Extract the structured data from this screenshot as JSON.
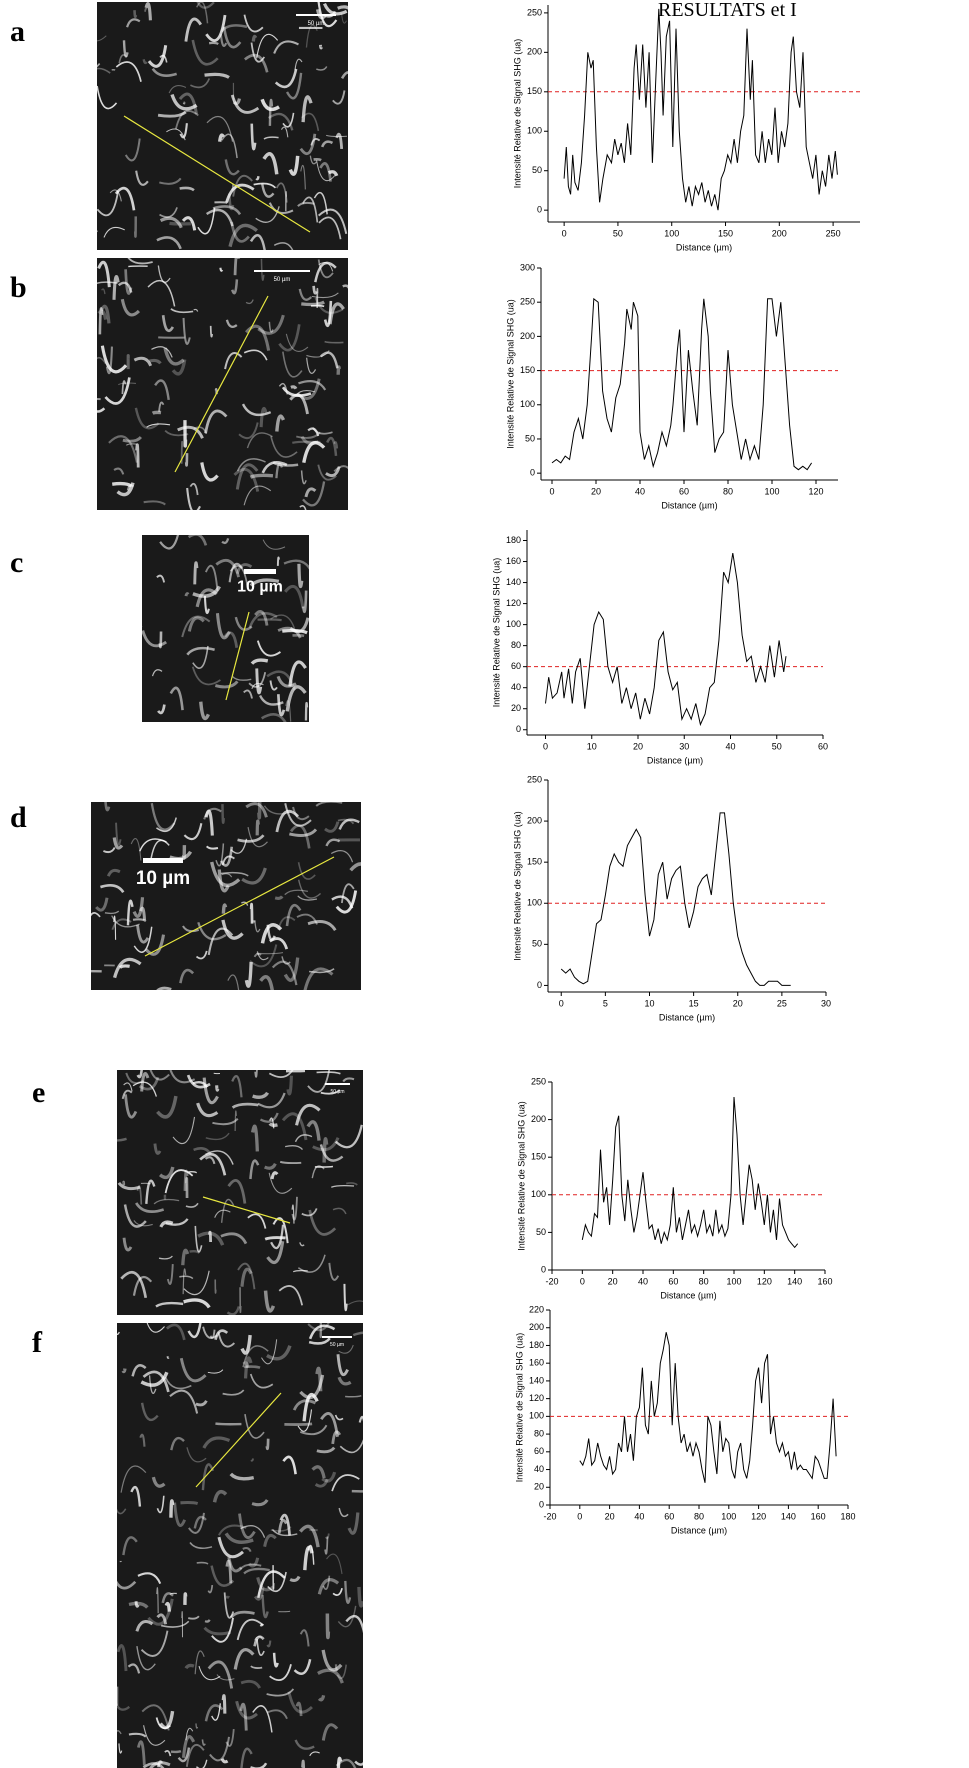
{
  "header": "RESULTATS et I",
  "chart_data": [
    {
      "type": "line",
      "panel": "a",
      "scale_bar": "50 µm",
      "x_label": "Distance (µm)",
      "y_label": "Intensité Relative de Signal SHG (ua)",
      "xlim": [
        -15,
        275
      ],
      "xticks": [
        0,
        50,
        100,
        150,
        200,
        250
      ],
      "ylim": [
        -15,
        260
      ],
      "yticks": [
        0,
        50,
        100,
        150,
        200,
        250
      ],
      "threshold": 150,
      "threshold_color": "#e02020",
      "x": [
        0,
        2,
        4,
        6,
        8,
        10,
        13,
        16,
        19,
        22,
        25,
        27,
        30,
        33,
        36,
        40,
        44,
        47,
        50,
        53,
        56,
        59,
        62,
        65,
        67,
        70,
        73,
        76,
        79,
        82,
        85,
        88,
        90,
        92,
        95,
        98,
        101,
        104,
        107,
        110,
        113,
        116,
        119,
        122,
        125,
        128,
        131,
        134,
        137,
        140,
        143,
        146,
        149,
        152,
        155,
        158,
        161,
        164,
        167,
        170,
        173,
        175,
        178,
        181,
        184,
        187,
        190,
        193,
        196,
        199,
        202,
        205,
        208,
        211,
        213,
        216,
        219,
        222,
        225,
        228,
        231,
        234,
        237,
        240,
        243,
        246,
        249,
        252,
        254
      ],
      "series": [
        {
          "color": "#000000",
          "values": [
            40,
            80,
            30,
            20,
            70,
            35,
            25,
            60,
            120,
            200,
            180,
            190,
            80,
            10,
            40,
            70,
            60,
            90,
            70,
            85,
            60,
            110,
            70,
            180,
            210,
            140,
            210,
            130,
            200,
            60,
            160,
            255,
            200,
            120,
            220,
            240,
            80,
            230,
            100,
            40,
            10,
            30,
            5,
            30,
            20,
            35,
            10,
            25,
            5,
            20,
            0,
            40,
            50,
            70,
            60,
            90,
            60,
            100,
            120,
            230,
            140,
            190,
            70,
            60,
            100,
            60,
            90,
            70,
            130,
            60,
            100,
            80,
            110,
            200,
            220,
            150,
            130,
            200,
            80,
            60,
            40,
            70,
            20,
            50,
            30,
            70,
            40,
            75,
            45
          ]
        }
      ]
    },
    {
      "type": "line",
      "panel": "b",
      "scale_bar": "50 µm",
      "x_label": "Distance (µm)",
      "y_label": "Intensité Relative de Signal SHG (ua)",
      "xlim": [
        -5,
        130
      ],
      "xticks": [
        0,
        20,
        40,
        60,
        80,
        100,
        120
      ],
      "ylim": [
        -10,
        300
      ],
      "yticks": [
        0,
        50,
        100,
        150,
        200,
        250,
        300
      ],
      "threshold": 150,
      "threshold_color": "#e02020",
      "x": [
        0,
        2,
        4,
        6,
        8,
        10,
        12,
        14,
        16,
        18,
        19,
        21,
        23,
        25,
        27,
        29,
        31,
        33,
        34,
        36,
        37,
        39,
        40,
        42,
        44,
        46,
        48,
        50,
        52,
        54,
        55,
        57,
        58,
        60,
        62,
        64,
        66,
        68,
        69,
        71,
        72,
        74,
        76,
        78,
        80,
        82,
        84,
        86,
        88,
        90,
        92,
        94,
        96,
        98,
        100,
        102,
        104,
        106,
        108,
        110,
        112,
        114,
        116,
        118
      ],
      "series": [
        {
          "color": "#000000",
          "values": [
            15,
            20,
            15,
            25,
            20,
            60,
            80,
            50,
            100,
            200,
            255,
            250,
            120,
            80,
            60,
            110,
            130,
            190,
            240,
            210,
            250,
            230,
            60,
            20,
            40,
            10,
            30,
            60,
            40,
            70,
            100,
            180,
            210,
            60,
            180,
            120,
            70,
            210,
            255,
            200,
            120,
            30,
            50,
            60,
            180,
            100,
            60,
            20,
            50,
            20,
            40,
            20,
            100,
            255,
            255,
            200,
            250,
            160,
            70,
            10,
            5,
            10,
            5,
            15
          ]
        }
      ]
    },
    {
      "type": "line",
      "panel": "c",
      "scale_bar": "10 µm",
      "x_label": "Distance (µm)",
      "y_label": "Intensité Relative de Signal SHG (ua)",
      "xlim": [
        -4,
        60
      ],
      "xticks": [
        0,
        10,
        20,
        30,
        40,
        50,
        60
      ],
      "ylim": [
        -5,
        190
      ],
      "yticks": [
        0,
        20,
        40,
        60,
        80,
        100,
        120,
        140,
        160,
        180
      ],
      "threshold": 60,
      "threshold_color": "#e02020",
      "x": [
        0,
        0.7,
        1.5,
        2.5,
        3.5,
        4,
        5,
        5.8,
        6.5,
        7.5,
        8.5,
        9.5,
        10.5,
        11.5,
        12.5,
        13.5,
        14.5,
        15.5,
        16.5,
        17.5,
        18.5,
        19.5,
        20.5,
        21.5,
        22.5,
        23.5,
        24.5,
        25.5,
        26.5,
        27.5,
        28.5,
        29.5,
        30.5,
        31.5,
        32.5,
        33.5,
        34.5,
        35.5,
        36.5,
        37.5,
        38.5,
        39.5,
        40.5,
        41.5,
        42.5,
        43.5,
        44.5,
        45.5,
        46.5,
        47.5,
        48.5,
        49.5,
        50.5,
        51.5,
        52
      ],
      "series": [
        {
          "color": "#000000",
          "values": [
            25,
            50,
            30,
            35,
            55,
            30,
            58,
            25,
            55,
            68,
            20,
            60,
            100,
            112,
            105,
            60,
            45,
            60,
            25,
            40,
            20,
            35,
            10,
            30,
            15,
            40,
            85,
            93,
            55,
            38,
            45,
            10,
            20,
            10,
            25,
            5,
            15,
            40,
            45,
            85,
            150,
            140,
            168,
            140,
            90,
            65,
            70,
            45,
            60,
            45,
            80,
            50,
            85,
            55,
            70
          ]
        }
      ]
    },
    {
      "type": "line",
      "panel": "d",
      "scale_bar": "10 µm",
      "x_label": "Distance (µm)",
      "y_label": "Intensité Relative de Signal SHG (ua)",
      "xlim": [
        -1.5,
        30
      ],
      "xticks": [
        0,
        5,
        10,
        15,
        20,
        25,
        30
      ],
      "ylim": [
        -8,
        250
      ],
      "yticks": [
        0,
        50,
        100,
        150,
        200,
        250
      ],
      "threshold": 100,
      "threshold_color": "#e02020",
      "x": [
        0,
        0.5,
        1,
        1.5,
        2,
        2.5,
        3,
        3.5,
        4,
        4.5,
        5,
        5.5,
        6,
        6.5,
        7,
        7.5,
        8,
        8.5,
        9,
        9.5,
        10,
        10.5,
        11,
        11.5,
        12,
        12.5,
        13,
        13.5,
        14,
        14.5,
        15,
        15.5,
        16,
        16.5,
        17,
        17.5,
        18,
        18.5,
        19,
        19.5,
        20,
        20.5,
        21,
        21.5,
        22,
        22.5,
        23,
        23.5,
        24,
        24.5,
        25,
        26
      ],
      "series": [
        {
          "color": "#000000",
          "values": [
            20,
            15,
            20,
            10,
            5,
            2,
            5,
            40,
            75,
            80,
            110,
            145,
            160,
            150,
            145,
            170,
            180,
            190,
            180,
            110,
            60,
            80,
            135,
            150,
            105,
            130,
            140,
            145,
            100,
            70,
            90,
            120,
            130,
            135,
            110,
            160,
            210,
            210,
            160,
            100,
            60,
            40,
            25,
            15,
            5,
            0,
            0,
            5,
            5,
            5,
            0,
            0
          ]
        }
      ]
    },
    {
      "type": "line",
      "panel": "e",
      "scale_bar": "50 µm",
      "x_label": "Distance (µm)",
      "y_label": "Intensité Relative de Signal SHG (ua)",
      "xlim": [
        -20,
        160
      ],
      "xticks": [
        -20,
        0,
        20,
        40,
        60,
        80,
        100,
        120,
        140,
        160
      ],
      "ylim": [
        0,
        250
      ],
      "yticks": [
        0,
        50,
        100,
        150,
        200,
        250
      ],
      "threshold": 100,
      "threshold_color": "#e02020",
      "x": [
        0,
        2,
        4,
        6,
        8,
        10,
        12,
        14,
        16,
        18,
        20,
        22,
        24,
        26,
        28,
        30,
        32,
        34,
        36,
        38,
        40,
        42,
        44,
        46,
        48,
        50,
        52,
        54,
        56,
        58,
        60,
        62,
        64,
        66,
        68,
        70,
        72,
        74,
        76,
        78,
        80,
        82,
        84,
        86,
        88,
        90,
        92,
        94,
        96,
        98,
        100,
        102,
        104,
        106,
        108,
        110,
        112,
        114,
        116,
        118,
        120,
        122,
        124,
        126,
        128,
        130,
        132,
        134,
        136,
        138,
        140,
        142
      ],
      "series": [
        {
          "color": "#000000",
          "values": [
            40,
            60,
            50,
            45,
            75,
            70,
            160,
            90,
            110,
            60,
            120,
            190,
            205,
            100,
            65,
            120,
            80,
            50,
            70,
            100,
            130,
            90,
            55,
            60,
            40,
            55,
            35,
            50,
            40,
            60,
            110,
            50,
            70,
            40,
            60,
            80,
            50,
            60,
            45,
            60,
            80,
            50,
            60,
            45,
            80,
            50,
            60,
            45,
            55,
            100,
            230,
            180,
            100,
            60,
            100,
            140,
            120,
            80,
            115,
            90,
            60,
            100,
            50,
            80,
            40,
            95,
            60,
            50,
            40,
            35,
            30,
            35
          ]
        }
      ]
    },
    {
      "type": "line",
      "panel": "f",
      "scale_bar": "50 µm",
      "x_label": "Distance (µm)",
      "y_label": "Intensité Relative de Signal SHG (ua)",
      "xlim": [
        -20,
        180
      ],
      "xticks": [
        -20,
        0,
        20,
        40,
        60,
        80,
        100,
        120,
        140,
        160,
        180
      ],
      "ylim": [
        0,
        220
      ],
      "yticks": [
        0,
        20,
        40,
        60,
        80,
        100,
        120,
        140,
        160,
        180,
        200,
        220
      ],
      "threshold": 100,
      "threshold_color": "#e02020",
      "x": [
        0,
        2,
        4,
        6,
        8,
        10,
        12,
        14,
        16,
        18,
        20,
        22,
        24,
        26,
        28,
        30,
        32,
        34,
        36,
        38,
        40,
        42,
        44,
        46,
        48,
        50,
        52,
        54,
        56,
        58,
        60,
        62,
        64,
        66,
        68,
        70,
        72,
        74,
        76,
        78,
        80,
        82,
        84,
        86,
        88,
        90,
        92,
        94,
        96,
        98,
        100,
        102,
        104,
        106,
        108,
        110,
        112,
        114,
        116,
        118,
        120,
        122,
        124,
        126,
        128,
        130,
        132,
        134,
        136,
        138,
        140,
        142,
        144,
        146,
        148,
        150,
        152,
        154,
        156,
        158,
        160,
        162,
        164,
        166,
        168,
        170,
        172
      ],
      "series": [
        {
          "color": "#000000",
          "values": [
            50,
            45,
            55,
            75,
            45,
            50,
            70,
            55,
            45,
            40,
            55,
            35,
            40,
            70,
            60,
            100,
            60,
            80,
            50,
            100,
            110,
            155,
            90,
            80,
            140,
            100,
            115,
            160,
            175,
            195,
            180,
            90,
            160,
            100,
            70,
            80,
            60,
            70,
            55,
            70,
            60,
            40,
            25,
            100,
            90,
            60,
            35,
            95,
            60,
            75,
            70,
            40,
            30,
            60,
            70,
            40,
            30,
            50,
            90,
            140,
            155,
            115,
            160,
            170,
            80,
            100,
            70,
            60,
            70,
            55,
            60,
            40,
            60,
            40,
            45,
            40,
            40,
            35,
            30,
            55,
            50,
            40,
            30,
            30,
            70,
            120,
            55
          ]
        }
      ]
    }
  ]
}
